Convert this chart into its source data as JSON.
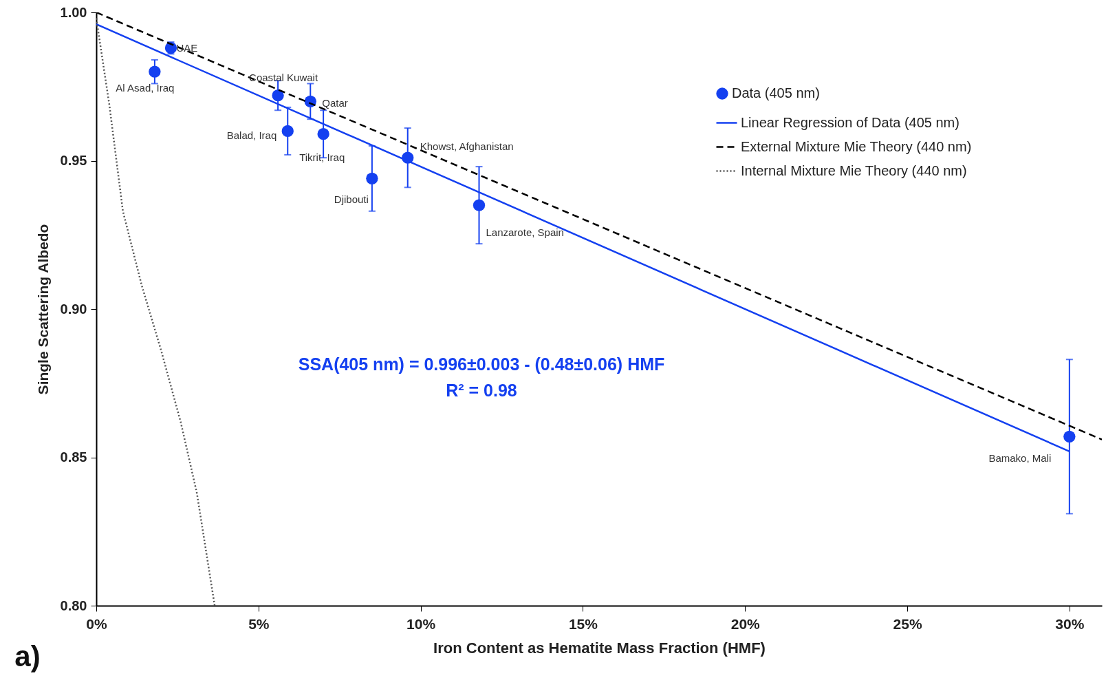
{
  "chart_data": {
    "type": "scatter",
    "xlabel": "Iron Content as Hematite Mass Fraction (HMF)",
    "ylabel": "Single Scattering Albedo",
    "xlim": [
      0,
      0.31
    ],
    "ylim": [
      0.8,
      1.0
    ],
    "xticks": [
      {
        "value": 0,
        "label": "0%"
      },
      {
        "value": 0.05,
        "label": "5%"
      },
      {
        "value": 0.1,
        "label": "10%"
      },
      {
        "value": 0.15,
        "label": "15%"
      },
      {
        "value": 0.2,
        "label": "20%"
      },
      {
        "value": 0.25,
        "label": "25%"
      },
      {
        "value": 0.3,
        "label": "30%"
      }
    ],
    "yticks": [
      {
        "value": 0.8,
        "label": "0.80"
      },
      0.85,
      {
        "value": 0.9,
        "label": "0.90"
      },
      0.95,
      {
        "value": 1.0,
        "label": "1.00"
      }
    ],
    "grid": false,
    "legend": "top right",
    "series": [
      {
        "name": "Data (405 nm)",
        "marker": "circle",
        "color": "#1440f0",
        "x": [
          0.018,
          0.023,
          0.056,
          0.059,
          0.066,
          0.07,
          0.085,
          0.096,
          0.118,
          0.3
        ],
        "values": [
          0.98,
          0.988,
          0.972,
          0.96,
          0.97,
          0.959,
          0.944,
          0.951,
          0.935,
          0.857
        ],
        "errors": [
          0.004,
          0.002,
          0.005,
          0.008,
          0.006,
          0.008,
          0.011,
          0.01,
          0.013,
          0.026
        ]
      },
      {
        "name": "Linear Regression of Data (405 nm)",
        "type": "line",
        "line_style": "solid",
        "color": "#1440f0",
        "x": [
          0,
          0.3
        ],
        "values": [
          0.996,
          0.852
        ]
      },
      {
        "name": "External Mixture Mie Theory (440 nm)",
        "type": "line",
        "line_style": "dashed",
        "color": "#000000",
        "x": [
          0,
          0.31
        ],
        "values": [
          1.0,
          0.856
        ]
      },
      {
        "name": "Internal Mixture Mie Theory (440 nm)",
        "type": "line",
        "line_style": "dotted",
        "color": "#555555",
        "x": [
          0,
          0.004,
          0.0082,
          0.014,
          0.02,
          0.026,
          0.031,
          0.0365
        ],
        "values": [
          0.998,
          0.969,
          0.933,
          0.908,
          0.886,
          0.862,
          0.838,
          0.8
        ]
      }
    ],
    "annotations": [
      {
        "text": "Al Asad, Iraq",
        "x": 0.018,
        "y": 0.98
      },
      {
        "text": "UAE",
        "x": 0.023,
        "y": 0.988
      },
      {
        "text": "Coastal Kuwait",
        "x": 0.056,
        "y": 0.972
      },
      {
        "text": "Balad, Iraq",
        "x": 0.059,
        "y": 0.96
      },
      {
        "text": "Qatar",
        "x": 0.066,
        "y": 0.97
      },
      {
        "text": "Tikrit, Iraq",
        "x": 0.07,
        "y": 0.959
      },
      {
        "text": "Djibouti",
        "x": 0.085,
        "y": 0.944
      },
      {
        "text": "Khowst, Afghanistan",
        "x": 0.096,
        "y": 0.951
      },
      {
        "text": "Lanzarote, Spain",
        "x": 0.118,
        "y": 0.935
      },
      {
        "text": "Bamako, Mali",
        "x": 0.3,
        "y": 0.857
      },
      "SSA(405 nm) = 0.996±0.003 - (0.48±0.06) HMF",
      "R² = 0.98",
      "a)"
    ]
  }
}
